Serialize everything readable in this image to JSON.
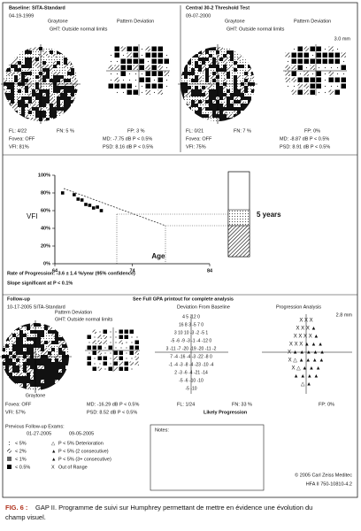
{
  "baseline": {
    "title": "Baseline: SITA-Standard",
    "date": "04-19-1999",
    "graytone": "Graytone",
    "pattern": "Pattern Deviation",
    "ght": "GHT: Outside normal limits",
    "fl": "FL: 4/22",
    "fn": "FN: 5 %",
    "fp": "FP: 3 %",
    "fovea": "Fovea: OFF",
    "vfi": "VFI: 81%",
    "md": "MD: -7.75 dB P < 0.5%",
    "psd": "PSD: 8.16 dB P < 0.5%"
  },
  "current": {
    "title": "Central 30-2 Threshold Test",
    "date": "09-07-2000",
    "graytone": "Graytone",
    "pattern": "Pattern Deviation",
    "ght": "GHT: Outside normal limits",
    "size": "3.0 mm",
    "fl": "FL: 0/21",
    "fn": "FN: 7 %",
    "fp": "FP: 0%",
    "fovea": "Fovea: OFF",
    "vfi": "VFI: 75%",
    "md": "MD: -8.87 dB P < 0.5%",
    "psd": "PSD: 8.91 dB P < 0.5%"
  },
  "vfi_chart": {
    "ylabel": "VFI",
    "xlabel": "Age",
    "ylim": [
      0,
      100
    ],
    "xlim": [
      64,
      84
    ],
    "yticks": [
      {
        "value": 100,
        "label": "100%"
      },
      {
        "value": 80,
        "label": "80%"
      },
      {
        "value": 60,
        "label": "60%"
      },
      {
        "value": 40,
        "label": "40%"
      },
      {
        "value": 20,
        "label": "20%"
      },
      {
        "value": 0,
        "label": "0%"
      }
    ],
    "xticks": [
      64,
      74,
      84
    ],
    "x": [
      65,
      66.5,
      67,
      67.5,
      68,
      68.5,
      69,
      69.5,
      70
    ],
    "values": [
      80,
      78,
      73,
      72,
      67,
      66,
      63,
      64,
      60
    ],
    "projection_label": "5 years"
  },
  "rate": "Rate of Progression: -3.6 ± 1.4 %/year (95% confidence)",
  "slope": "Slope significant at P < 0.1%",
  "followup": {
    "label": "Follow-up",
    "see": "See Full GPA printout for complete analysis",
    "date": "10-17-2005 SITA-Standard",
    "graytone": "Graytone",
    "pattern": "Pattern Deviation",
    "ght": "GHT: Outside normal limits",
    "dev_title": "Deviation From Baseline",
    "prog_title": "Progression Analysis",
    "size": "2.8 mm",
    "fovea": "Fovea: OFF",
    "vfi": "VFI: 57%",
    "md": "MD: -16.29 dB P < 0.5%",
    "psd": "PSD: 8.52 dB P < 0.5%",
    "fl": "FL: 1/24",
    "fn": "FN: 33 %",
    "fp": "FP: 0%",
    "likely": "Likely Progression",
    "deviation_rows": [
      "4  5 -12  0",
      "16  8  3  -5  7  0",
      "3  10  10  -3  -2  -5  1",
      "-5  -6  -9  -3  -1  -4  -12  0",
      "3  -11  -7  -20  -19  -20  -11  -2",
      "7  -4  -16  -4  -3  -22  -8  0",
      "-1  -4  -3  -8  -4  -23  -10  -4",
      "2  -3  -6  -4  -21  -14",
      "-5  -6  -10  -10",
      "-5  -10"
    ],
    "progression_rows": [
      "X  X  X",
      "X  X  X  ▲",
      "X  X  X  X  ▲",
      "X  X  X  ▲  ▲  ▲",
      "X  ▲  ▲  ▲  ▲  ▲",
      "X  △  ▲  ▲  ▲  ▲",
      "X  △  ▲  ▲  ▲",
      "▲  ▲  ▲  ▲",
      "△  ▲"
    ]
  },
  "previous": {
    "title": "Previous Follow-up Exams:",
    "dates": [
      "01-27-2005",
      "09-05-2005"
    ]
  },
  "legend": {
    "left": [
      "< 5%",
      "< 2%",
      "< 1%",
      "< 0.5%"
    ],
    "right": [
      "P < 5% Deterioration",
      "P < 5% (2 consecutive)",
      "P < 5% (3+ consecutive)",
      "Out of Range"
    ]
  },
  "notes": "Notes:",
  "copyright": "© 2005 Carl Zeiss Meditec",
  "model": "HFA II 750-10810-4.2",
  "caption": {
    "label": "FIG. 6 :",
    "text1": "GAP II. Programme de suivi sur Humphrey permettant de mettre en évidence une évolution du",
    "text2": "champ visuel."
  }
}
